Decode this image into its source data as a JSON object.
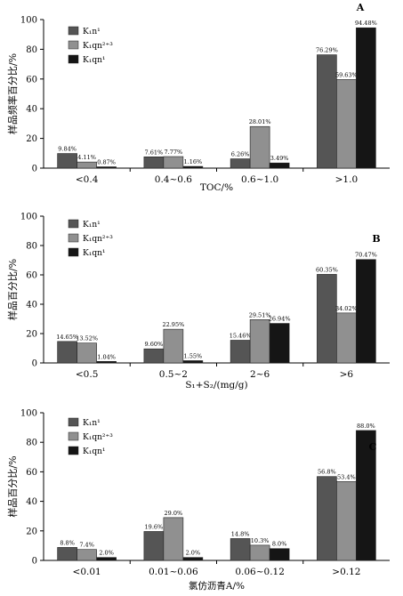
{
  "chart_data": [
    {
      "type": "bar",
      "panel_label": "A",
      "ylabel": "样品频率百分比/%",
      "xlabel": "TOC/%",
      "ylim": [
        0,
        100
      ],
      "yticks": [
        "0",
        "20",
        "40",
        "60",
        "80",
        "100"
      ],
      "categories": [
        "<0.4",
        "0.4~0.6",
        "0.6~1.0",
        ">1.0"
      ],
      "series": [
        {
          "name": "K₁n¹",
          "color": "#555555",
          "values": [
            9.84,
            7.61,
            6.26,
            76.29
          ],
          "labels": [
            "9.84%",
            "7.61%",
            "6.26%",
            "76.29%"
          ]
        },
        {
          "name": "K₁qn²⁺³",
          "color": "#909090",
          "values": [
            4.11,
            7.77,
            28.01,
            59.63
          ],
          "labels": [
            "4.11%",
            "7.77%",
            "28.01%",
            "59.63%"
          ]
        },
        {
          "name": "K₁qn¹",
          "color": "#151515",
          "values": [
            0.87,
            1.16,
            3.49,
            94.48
          ],
          "labels": [
            "0.87%",
            "1.16%",
            "3.49%",
            "94.48%"
          ]
        }
      ]
    },
    {
      "type": "bar",
      "panel_label": "B",
      "ylabel": "样品百分比/%",
      "xlabel": "S₁+S₂/(mg/g)",
      "ylim": [
        0,
        100
      ],
      "yticks": [
        "0",
        "20",
        "40",
        "60",
        "80",
        "100"
      ],
      "categories": [
        "<0.5",
        "0.5~2",
        "2~6",
        ">6"
      ],
      "series": [
        {
          "name": "K₁n¹",
          "color": "#555555",
          "values": [
            14.65,
            9.6,
            15.46,
            60.35
          ],
          "labels": [
            "14.65%",
            "9.60%",
            "15.46%",
            "60.35%"
          ]
        },
        {
          "name": "K₁qn²⁺³",
          "color": "#909090",
          "values": [
            13.52,
            22.95,
            29.51,
            34.02
          ],
          "labels": [
            "13.52%",
            "22.95%",
            "29.51%",
            "34.02%"
          ]
        },
        {
          "name": "K₁qn¹",
          "color": "#151515",
          "values": [
            1.04,
            1.55,
            26.94,
            70.47
          ],
          "labels": [
            "1.04%",
            "1.55%",
            "26.94%",
            "70.47%"
          ]
        }
      ]
    },
    {
      "type": "bar",
      "panel_label": "C",
      "ylabel": "样品百分比/%",
      "xlabel": "氯仿沥青A/%",
      "ylim": [
        0,
        100
      ],
      "yticks": [
        "0",
        "20",
        "40",
        "60",
        "80",
        "100"
      ],
      "categories": [
        "<0.01",
        "0.01~0.06",
        "0.06~0.12",
        ">0.12"
      ],
      "series": [
        {
          "name": "K₁n¹",
          "color": "#555555",
          "values": [
            8.8,
            19.6,
            14.8,
            56.8
          ],
          "labels": [
            "8.8%",
            "19.6%",
            "14.8%",
            "56.8%"
          ]
        },
        {
          "name": "K₁qn²⁺³",
          "color": "#909090",
          "values": [
            7.4,
            29.0,
            10.3,
            53.4
          ],
          "labels": [
            "7.4%",
            "29.0%",
            "10.3%",
            "53.4%"
          ]
        },
        {
          "name": "K₁qn¹",
          "color": "#151515",
          "values": [
            2.0,
            2.0,
            8.0,
            88.0
          ],
          "labels": [
            "2.0%",
            "2.0%",
            "8.0%",
            "88.0%"
          ]
        }
      ]
    }
  ]
}
